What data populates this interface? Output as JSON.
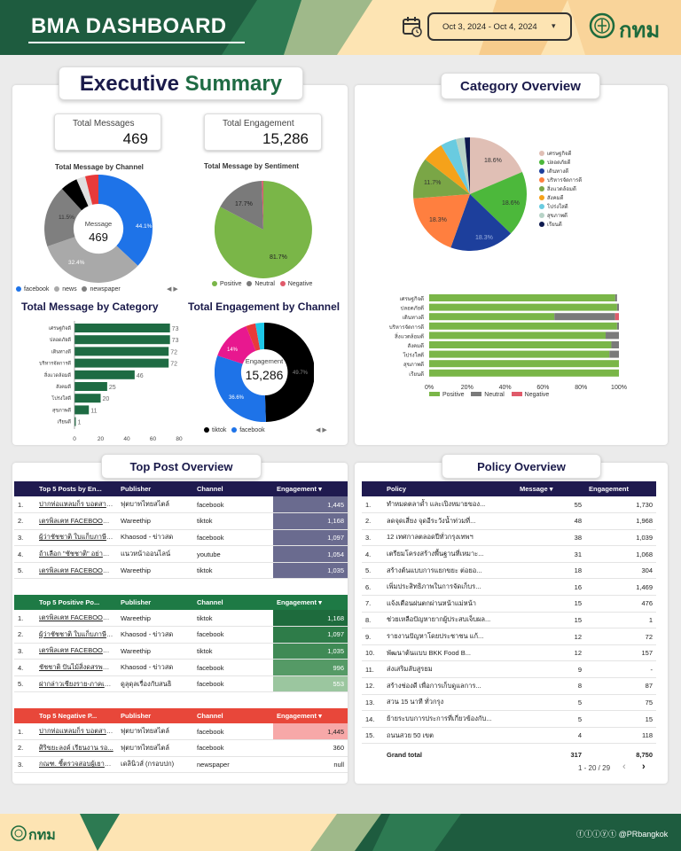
{
  "header": {
    "title": "BMA DASHBOARD",
    "date_range": "Oct 3, 2024 - Oct 4, 2024",
    "logo_text": "กทม"
  },
  "footer": {
    "logo_text": "กทม",
    "handle": "@PRbangkok"
  },
  "exec": {
    "title_part1": "Executive",
    "title_part2": "Summary",
    "kpi1": {
      "label": "Total Messages",
      "value": "469"
    },
    "kpi2": {
      "label": "Total Engagement",
      "value": "15,286"
    }
  },
  "channel_donut": {
    "title": "Total Message by Channel",
    "center_label": "Message",
    "center_value": "469",
    "labels": [
      "44.1%",
      "32.4%",
      "11.5%"
    ],
    "legend": [
      "facebook",
      "news",
      "newspaper"
    ],
    "pager": "◀ ▶",
    "colors": [
      "#1e73e8",
      "#a9a9a9",
      "#7f7f7f",
      "#000000",
      "#e8e8e8",
      "#e83a3a"
    ]
  },
  "sentiment_pie": {
    "title": "Total Message by Sentiment",
    "labels": [
      "81.7%",
      "17.7%"
    ],
    "legend": [
      "Positive",
      "Neutral",
      "Negative"
    ],
    "colors": [
      "#7ab648",
      "#7a7a7a",
      "#e05a6a"
    ]
  },
  "category_bar": {
    "title": "Total Message by Category",
    "cats": [
      "เศรษฐกิจดี",
      "ปลอดภัยดี",
      "เดินทางดี",
      "บริหารจัดการดี",
      "สิ่งแวดล้อมดี",
      "สังคมดี",
      "โปร่งใสดี",
      "สุขภาพดี",
      "เรียนดี"
    ],
    "vals": [
      73,
      73,
      72,
      72,
      46,
      25,
      20,
      11,
      1
    ],
    "ticks": [
      "0",
      "20",
      "40",
      "60",
      "80"
    ]
  },
  "engagement_donut": {
    "title": "Total Engagement by Channel",
    "center_label": "Engagement",
    "center_value": "15,286",
    "labels": [
      "49.7%",
      "36.6%",
      "14%"
    ],
    "legend": [
      "tiktok",
      "facebook"
    ],
    "pager": "◀ ▶",
    "colors": [
      "#000000",
      "#1e73e8",
      "#e8188f",
      "#e83a3a",
      "#1ec8e8"
    ]
  },
  "category_overview": {
    "title": "Category Overview",
    "pie_labels": [
      "18.6%",
      "18.6%",
      "18.3%",
      "18.3%",
      "11.7%"
    ],
    "legend": [
      "เศรษฐกิจดี",
      "ปลอดภัยดี",
      "เดินทางดี",
      "บริหารจัดการดี",
      "สิ่งแวดล้อมดี",
      "สังคมดี",
      "โปร่งใสดี",
      "สุขภาพดี",
      "เรียนดี"
    ],
    "colors": [
      "#e0bfb5",
      "#4cb83b",
      "#1d3f9c",
      "#ff7f3f",
      "#7aa646",
      "#f5a21a",
      "#69cbe0",
      "#b7d3c7",
      "#0e1a4f"
    ],
    "stack": {
      "cats": [
        "เศรษฐกิจดี",
        "ปลอดภัยดี",
        "เดินทางดี",
        "บริหารจัดการดี",
        "สิ่งแวดล้อมดี",
        "สังคมดี",
        "โปร่งใสดี",
        "สุขภาพดี",
        "เรียนดี"
      ],
      "positive": [
        0.98,
        0.99,
        0.66,
        0.99,
        0.93,
        0.96,
        0.95,
        1.0,
        1.0
      ],
      "neutral": [
        0.01,
        0.01,
        0.32,
        0.01,
        0.07,
        0.04,
        0.05,
        0.0,
        0.0
      ],
      "negative": [
        0.0,
        0.0,
        0.02,
        0.0,
        0.0,
        0.0,
        0.0,
        0.0,
        0.0
      ],
      "ticks": [
        "0%",
        "20%",
        "40%",
        "60%",
        "80%",
        "100%"
      ],
      "legend": [
        "Positive",
        "Neutral",
        "Negative"
      ]
    }
  },
  "top_post": {
    "title": "Top Post Overview",
    "t1": {
      "headers": [
        "",
        "Top 5 Posts by En...",
        "Publisher",
        "Channel",
        "Engagement ▾"
      ],
      "rows": [
        [
          "1.",
          "ปากท่อแหลมก็ร บอตสายของ...",
          "ฟุตบาทไทยสไตล์",
          "facebook",
          "1,445"
        ],
        [
          "2.",
          "เตรพิลเฅท FACEBOOK :...",
          "Wareethip",
          "tiktok",
          "1,168"
        ],
        [
          "3.",
          "ผู้ว่าชัชชาติ ใบแก็บภาษี ที่ม...",
          "Khaosod - ข่าวสด",
          "facebook",
          "1,097"
        ],
        [
          "4.",
          "ถ้าเลือก \"ชัชชาติ\" อย่ามาบ้อ...",
          "แนวหน้าออนไลน์",
          "youtube",
          "1,054"
        ],
        [
          "5.",
          "เตรพิลเฅท FACEBOOK :...",
          "Wareethip",
          "tiktok",
          "1,035"
        ]
      ]
    },
    "t2": {
      "headers": [
        "",
        "Top 5 Positive Po...",
        "Publisher",
        "Channel",
        "Engagement ▾"
      ],
      "rows": [
        [
          "1.",
          "เตรพิลเฅท FACEBOOK :...",
          "Wareethip",
          "tiktok",
          "1,168"
        ],
        [
          "2.",
          "ผู้ว่าชัชชาติ ใบแก็บภาษี ที่ม...",
          "Khaosod - ข่าวสด",
          "facebook",
          "1,097"
        ],
        [
          "3.",
          "เตรพิลเฅท FACEBOOK :...",
          "Wareethip",
          "tiktok",
          "1,035"
        ],
        [
          "4.",
          "ชัชชาติ ปันไม้สิ่งดสรพแล้ว...",
          "Khaosod - ข่าวสด",
          "facebook",
          "996"
        ],
        [
          "5.",
          "ฝากล่าวเชียงราย-ภาคเหนือ...",
          "ดูลุดุลเรื่องกับสนธิ",
          "facebook",
          "553"
        ]
      ]
    },
    "t3": {
      "headers": [
        "",
        "Top 5 Negative P...",
        "Publisher",
        "Channel",
        "Engagement ▾"
      ],
      "rows": [
        [
          "1.",
          "ปากท่อแหลมก็ร บอตสายของ...",
          "ฟุตบาทไทยสไตล์",
          "facebook",
          "1,445"
        ],
        [
          "2.",
          "ศิริขยะลงค์ เรียนงาน รอ...",
          "ฟุตบาทไทยสไตล์",
          "facebook",
          "360"
        ],
        [
          "3.",
          "กณฑ. ชี้ตรวจสอบผู้เยาะผู้แ...",
          "เดลินิวส์ (กรอบปก)",
          "newspaper",
          "null"
        ]
      ]
    }
  },
  "policy": {
    "title": "Policy Overview",
    "headers": [
      "",
      "Policy",
      "Message ▾",
      "Engagement"
    ],
    "rows": [
      [
        "1.",
        "ทำหมดตลาด้ำ และเปิงหมายของ...",
        "55",
        "1,730"
      ],
      [
        "2.",
        "ลดจุดเสี่ยง จุดอีระวังน้ำท่วมที่...",
        "48",
        "1,968"
      ],
      [
        "3.",
        "12 เทศกาลตลอดปีทั่วกรุงเทพฯ",
        "38",
        "1,039"
      ],
      [
        "4.",
        "เตรียมโครงสร้างพื้นฐานที่เหมาะ...",
        "31",
        "1,068"
      ],
      [
        "5.",
        "สร้างต้นแบบการแยกขยะ ต่อยอ...",
        "18",
        "304"
      ],
      [
        "6.",
        "เพิ่มประสิทธิภาพในการจัดเก็บร...",
        "16",
        "1,469"
      ],
      [
        "7.",
        "แจ้งเตือนฝนตกผ่านหน้าแม่หน้า",
        "15",
        "476"
      ],
      [
        "8.",
        "ช่วยเหลือปัญหายากผู้ประสบเจ็บผล...",
        "15",
        "1"
      ],
      [
        "9.",
        "รายงานปัญหาโดยประชาชน แก้...",
        "12",
        "72"
      ],
      [
        "10.",
        "พัฒนาต้นแบบ BKK Food B...",
        "12",
        "157"
      ],
      [
        "11.",
        "ส่งเสริมลับสูรยม",
        "9",
        "-"
      ],
      [
        "12.",
        "สร้างช่องดี เพื่อการเก็บดูแลการ...",
        "8",
        "87"
      ],
      [
        "13.",
        "สวน 15 นาที ทั่วกรุง",
        "5",
        "75"
      ],
      [
        "14.",
        "ย้ายระบบการประการที่เกี่ยวข้องกับ...",
        "5",
        "15"
      ],
      [
        "15.",
        "ถนนสวย 50 เขต",
        "4",
        "118"
      ]
    ],
    "grand_total": [
      "Grand total",
      "317",
      "8,750"
    ],
    "pagination": "1 - 20 / 29"
  }
}
